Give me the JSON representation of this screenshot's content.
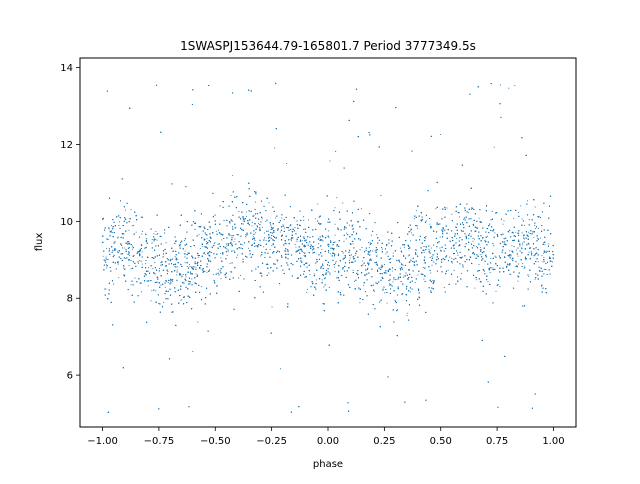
{
  "figure": {
    "title": "1SWASPJ153644.79-165801.7 Period 3777349.5s"
  },
  "chart_data": {
    "type": "scatter",
    "title": "1SWASPJ153644.79-165801.7 Period 3777349.5s",
    "xlabel": "phase",
    "ylabel": "flux",
    "xlim": [
      -1.1,
      1.1
    ],
    "ylim": [
      4.65,
      14.25
    ],
    "xticks": [
      -1.0,
      -0.75,
      -0.5,
      -0.25,
      0.0,
      0.25,
      0.5,
      0.75,
      1.0
    ],
    "xtick_labels": [
      "−1.00",
      "−0.75",
      "−0.50",
      "−0.25",
      "0.00",
      "0.25",
      "0.50",
      "0.75",
      "1.00"
    ],
    "yticks": [
      6,
      8,
      10,
      12,
      14
    ],
    "ytick_labels": [
      "6",
      "8",
      "10",
      "12",
      "14"
    ],
    "grid": false,
    "legend": "none",
    "series": [
      {
        "color": "#1f77b4",
        "marker_size_pt": 1,
        "point_count_approx": 12000,
        "x_range": [
          -1.0,
          1.0
        ],
        "y_range": [
          5.0,
          13.6
        ],
        "core_band": [
          7.5,
          11.0
        ],
        "profile_x": [
          -1.0,
          -0.9,
          -0.8,
          -0.7,
          -0.6,
          -0.5,
          -0.4,
          -0.3,
          -0.2,
          -0.1,
          0.0,
          0.1,
          0.2,
          0.3,
          0.4,
          0.5,
          0.6,
          0.7,
          0.8,
          0.9,
          1.0
        ],
        "profile_median_y": [
          9.1,
          9.4,
          9.0,
          8.6,
          9.0,
          9.3,
          9.7,
          9.6,
          9.5,
          9.3,
          9.0,
          9.4,
          9.0,
          8.7,
          9.0,
          9.4,
          9.5,
          9.2,
          9.4,
          9.4,
          9.1
        ],
        "profile_spread": [
          1.2,
          1.3,
          1.4,
          1.4,
          1.3,
          1.2,
          1.2,
          1.1,
          1.1,
          1.2,
          1.3,
          1.2,
          1.3,
          1.4,
          1.3,
          1.2,
          1.2,
          1.2,
          1.1,
          1.2,
          1.2
        ]
      }
    ]
  }
}
